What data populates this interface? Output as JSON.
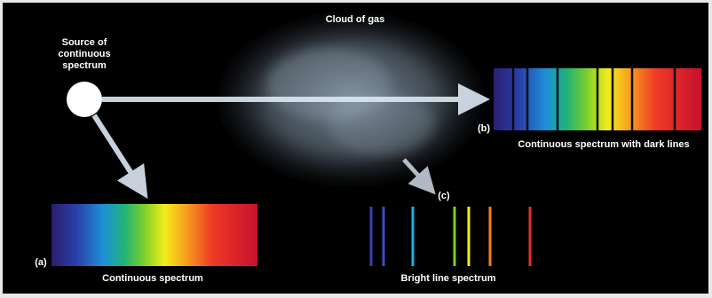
{
  "cloud_label": "Cloud of gas",
  "source_label": [
    "Source of",
    "continuous",
    "spectrum"
  ],
  "panel_b": {
    "tag": "(b)",
    "caption": "Continuous spectrum with dark lines"
  },
  "panel_c": {
    "tag": "(c)",
    "caption": "Bright line spectrum"
  },
  "panel_a": {
    "tag": "(a)",
    "caption": "Continuous spectrum"
  }
}
